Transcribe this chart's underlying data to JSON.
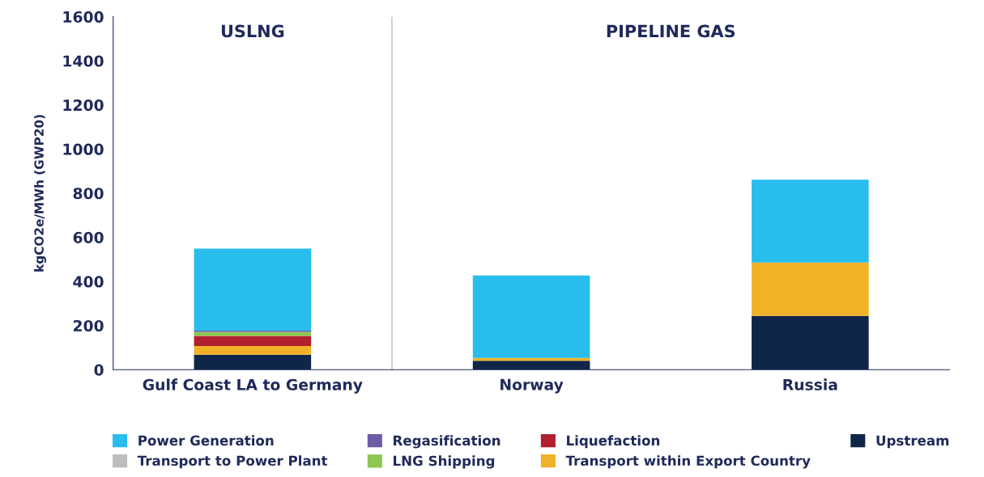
{
  "chart_data": {
    "type": "bar",
    "stacked": true,
    "ylabel": "kgCO2e/MWh (GWP20)",
    "categories": [
      "Gulf Coast LA to Germany",
      "Norway",
      "Russia"
    ],
    "series": [
      {
        "name": "Upstream",
        "color": "#0f2649",
        "values": [
          68,
          40,
          244
        ]
      },
      {
        "name": "Transport within Export Country",
        "color": "#f2b227",
        "values": [
          39,
          13,
          242
        ]
      },
      {
        "name": "Liquefaction",
        "color": "#b0202e",
        "values": [
          46,
          0,
          0
        ]
      },
      {
        "name": "LNG Shipping",
        "color": "#8dc650",
        "values": [
          18,
          0,
          0
        ]
      },
      {
        "name": "Regasification",
        "color": "#6b5ca5",
        "values": [
          6,
          0,
          0
        ]
      },
      {
        "name": "Transport to Power Plant",
        "color": "#bdbdbd",
        "values": [
          null,
          0,
          0
        ]
      },
      {
        "name": "Power Generation",
        "color": "#29bdee",
        "values": [
          372,
          374,
          375
        ]
      }
    ],
    "ylim": [
      0,
      1600
    ],
    "yticks": [
      0,
      200,
      400,
      600,
      800,
      1000,
      1200,
      1400,
      1600
    ],
    "annotations": [
      "USLNG",
      "PIPELINE GAS"
    ],
    "legend": "bottom",
    "grid": false
  }
}
